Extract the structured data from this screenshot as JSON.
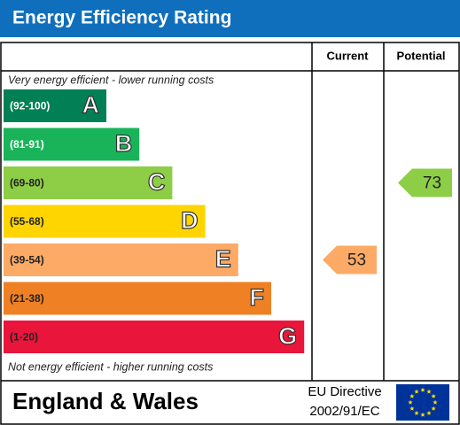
{
  "header": {
    "title": "Energy Efficiency Rating"
  },
  "columns": [
    "Current",
    "Potential"
  ],
  "top_note": "Very energy efficient - lower running costs",
  "bands": [
    {
      "range": "(92-100)",
      "letter": "A",
      "color": "#008054"
    },
    {
      "range": "(81-91)",
      "letter": "B",
      "color": "#19b459"
    },
    {
      "range": "(69-80)",
      "letter": "C",
      "color": "#8dce46"
    },
    {
      "range": "(55-68)",
      "letter": "D",
      "color": "#ffd500"
    },
    {
      "range": "(39-54)",
      "letter": "E",
      "color": "#fcaa65"
    },
    {
      "range": "(21-38)",
      "letter": "F",
      "color": "#ef8023"
    },
    {
      "range": "(1-20)",
      "letter": "G",
      "color": "#e9153b"
    }
  ],
  "bottom_note": "Not energy efficient - higher running costs",
  "current": 53,
  "potential": 73,
  "footer": {
    "region": "England & Wales",
    "directive": [
      "EU Directive",
      "2002/91/EC"
    ]
  }
}
